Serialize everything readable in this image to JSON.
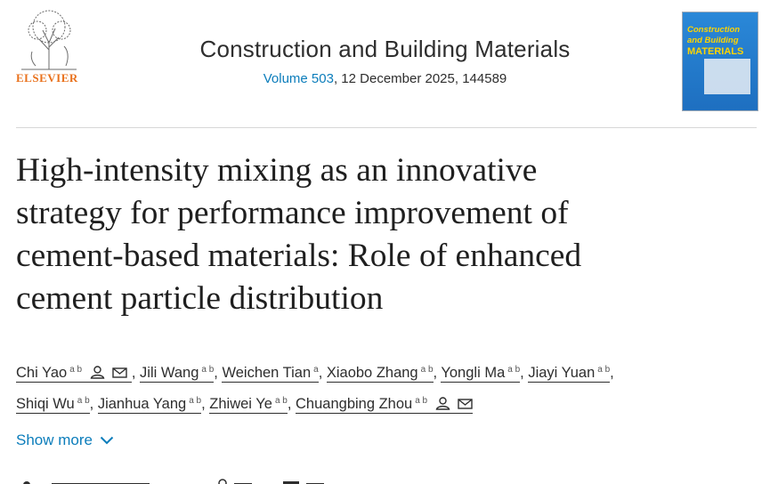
{
  "header": {
    "publisher": "ELSEVIER",
    "journal_title": "Construction and Building Materials",
    "volume_link": "Volume 503",
    "issue_info": ", 12 December 2025, 144589",
    "cover": {
      "line1": "Construction",
      "line2": "and Building",
      "line3": "MATERIALS"
    }
  },
  "article": {
    "title_lines": [
      "High-intensity mixing as an innovative",
      "strategy for performance improvement of",
      "cement-based materials: Role of enhanced",
      "cement particle distribution"
    ]
  },
  "authors": [
    {
      "name": "Chi Yao",
      "aff": "a b",
      "contact": true
    },
    {
      "name": "Jili Wang",
      "aff": "a b"
    },
    {
      "name": "Weichen Tian",
      "aff": "a"
    },
    {
      "name": "Xiaobo Zhang",
      "aff": "a b"
    },
    {
      "name": "Yongli Ma",
      "aff": "a b"
    },
    {
      "name": "Jiayi Yuan",
      "aff": "a b"
    },
    {
      "name": "Shiqi Wu",
      "aff": "a b"
    },
    {
      "name": "Jianhua Yang",
      "aff": "a b"
    },
    {
      "name": "Zhiwei Ye",
      "aff": "a b"
    },
    {
      "name": "Chuangbing Zhou",
      "aff": "a b",
      "contact": true
    }
  ],
  "show_more": "Show more",
  "colors": {
    "link": "#0c7dbb",
    "publisher": "#e9711c"
  }
}
